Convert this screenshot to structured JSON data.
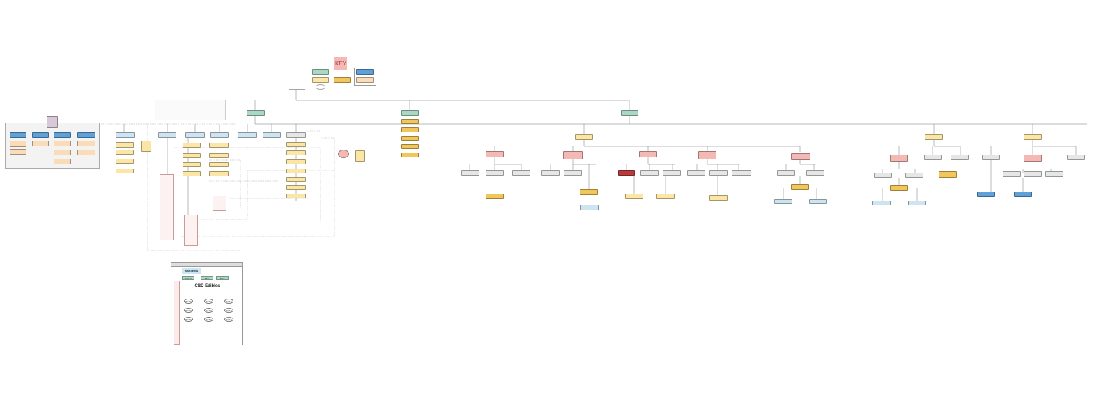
{
  "key": {
    "title": "KEY"
  },
  "mockup": {
    "logo": "NanoEats",
    "buttons": [
      "Products",
      "Shop",
      "About"
    ],
    "title": "CBD Edibles",
    "product_ovals": [
      "Product",
      "Product",
      "Product",
      "Product",
      "Product",
      "Product",
      "Product",
      "Product",
      "Product"
    ]
  },
  "colors": {
    "green": "#a9d8c3",
    "yellow": "#fbe6a6",
    "gold": "#f1c75b",
    "pink": "#f4b8b5",
    "gray": "#e6e6e6",
    "blue": "#5fa0d8",
    "light_blue": "#cfe4f1",
    "red": "#b93a3a"
  }
}
